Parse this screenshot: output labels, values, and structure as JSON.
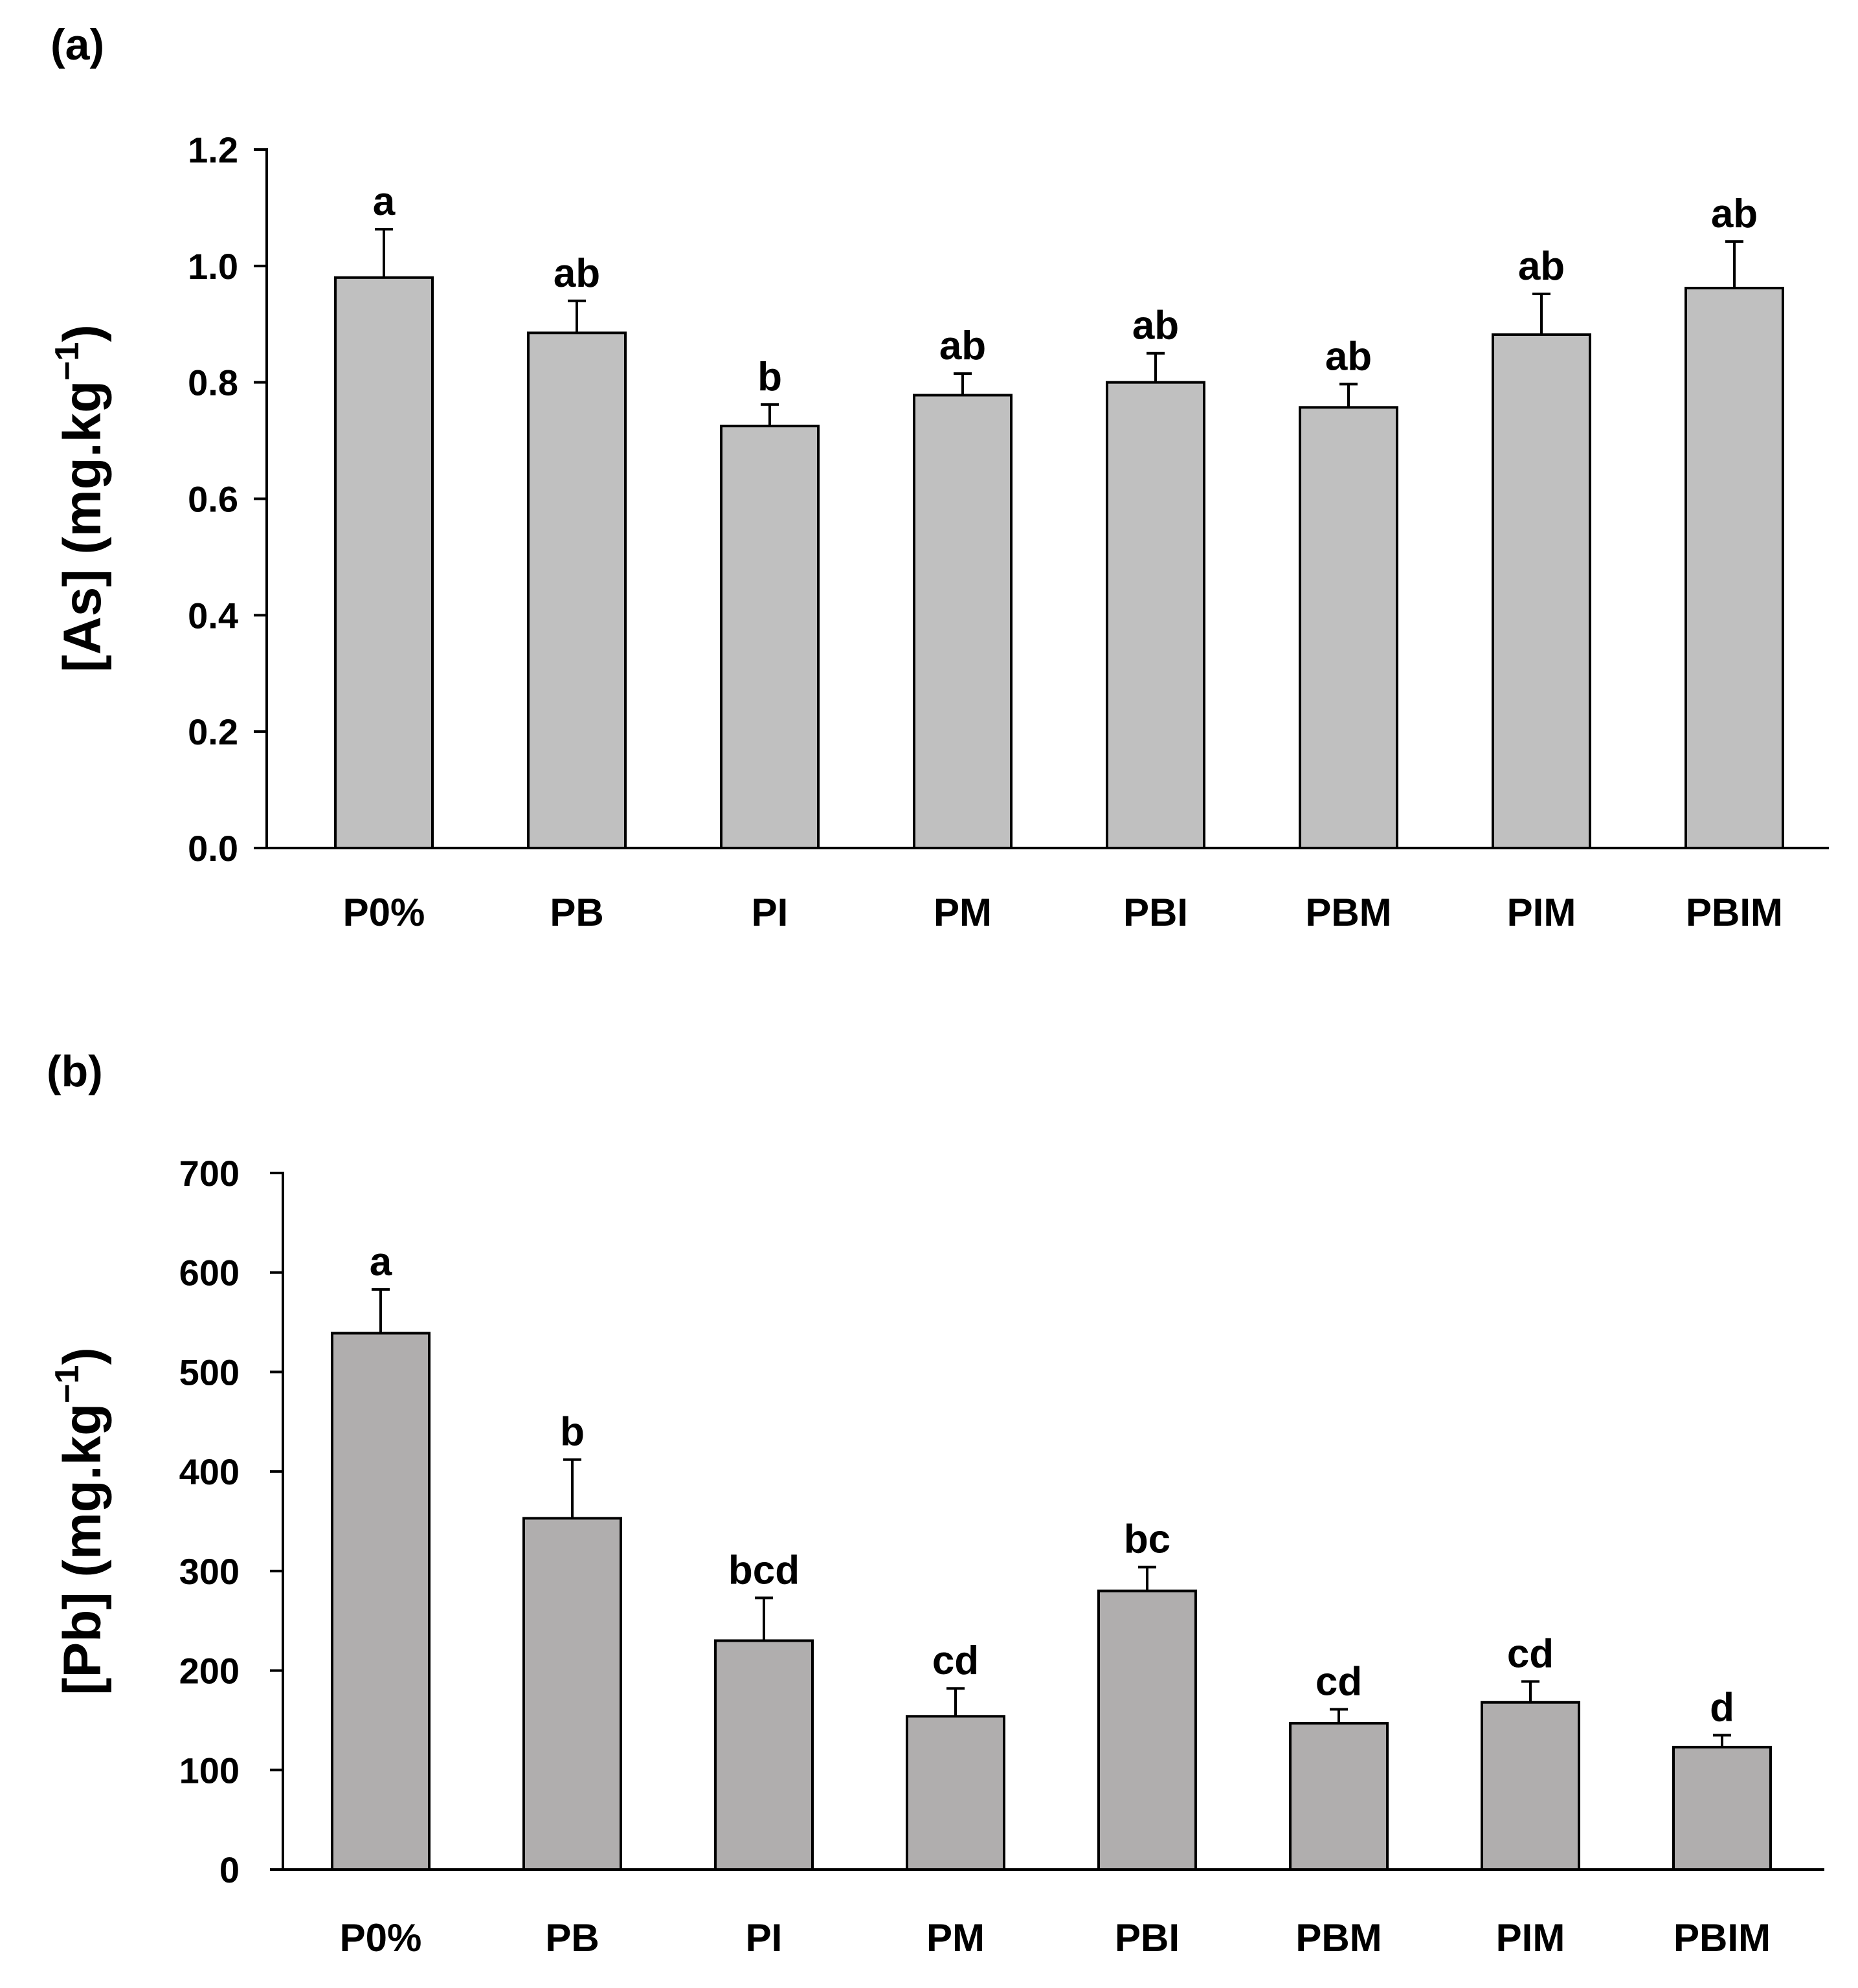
{
  "chart_data": [
    {
      "panel_label": "(a)",
      "type": "bar",
      "categories": [
        "P0%",
        "PB",
        "PI",
        "PM",
        "PBI",
        "PBM",
        "PIM",
        "PBIM"
      ],
      "values": [
        0.98,
        0.885,
        0.725,
        0.778,
        0.8,
        0.757,
        0.882,
        0.962
      ],
      "errors": [
        0.083,
        0.055,
        0.037,
        0.037,
        0.05,
        0.04,
        0.07,
        0.08
      ],
      "letters": [
        "a",
        "ab",
        "b",
        "ab",
        "ab",
        "ab",
        "ab",
        "ab"
      ],
      "ylabel_main": "[As] (mg.kg",
      "ylabel_sup": "−1",
      "ylabel_close": ")",
      "ylim": [
        0,
        1.2
      ],
      "yticks": [
        0.0,
        0.2,
        0.4,
        0.6,
        0.8,
        1.0,
        1.2
      ],
      "ytick_labels": [
        "0.0",
        "0.2",
        "0.4",
        "0.6",
        "0.8",
        "1.0",
        "1.2"
      ],
      "bar_color": "#c0c0c0",
      "grid": false
    },
    {
      "panel_label": "(b)",
      "type": "bar",
      "categories": [
        "P0%",
        "PB",
        "PI",
        "PM",
        "PBI",
        "PBM",
        "PIM",
        "PBIM"
      ],
      "values": [
        539,
        353,
        230,
        154,
        280,
        147,
        168,
        123
      ],
      "errors": [
        44,
        59,
        43,
        28,
        24,
        14,
        21,
        12
      ],
      "letters": [
        "a",
        "b",
        "bcd",
        "cd",
        "bc",
        "cd",
        "cd",
        "d"
      ],
      "ylabel_main": "[Pb] (mg.kg",
      "ylabel_sup": "−1",
      "ylabel_close": ")",
      "ylim": [
        0,
        700
      ],
      "yticks": [
        0,
        100,
        200,
        300,
        400,
        500,
        600,
        700
      ],
      "ytick_labels": [
        "0",
        "100",
        "200",
        "300",
        "400",
        "500",
        "600",
        "700"
      ],
      "bar_color": "#b0aeae",
      "grid": false
    }
  ]
}
